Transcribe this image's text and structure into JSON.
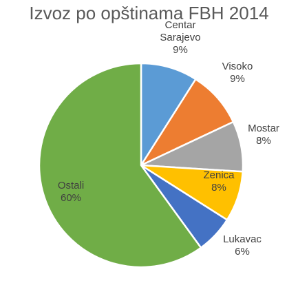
{
  "chart_data": {
    "type": "pie",
    "title": "Izvoz po opštinama FBH 2014",
    "slices": [
      {
        "category": "Centar Sarajevo",
        "value": 9,
        "label_lines": [
          "Centar",
          "Sarajevo"
        ],
        "value_label": "9%",
        "color": "#5B9BD5"
      },
      {
        "category": "Visoko",
        "value": 9,
        "label_lines": [
          "Visoko"
        ],
        "value_label": "9%",
        "color": "#ED7D31"
      },
      {
        "category": "Mostar",
        "value": 8,
        "label_lines": [
          "Mostar"
        ],
        "value_label": "8%",
        "color": "#A5A5A5"
      },
      {
        "category": "Zenica",
        "value": 8,
        "label_lines": [
          "Zenica"
        ],
        "value_label": "8%",
        "color": "#FFC000"
      },
      {
        "category": "Lukavac",
        "value": 6,
        "label_lines": [
          "Lukavac"
        ],
        "value_label": "6%",
        "color": "#4472C4"
      },
      {
        "category": "Ostali",
        "value": 60,
        "label_lines": [
          "Ostali"
        ],
        "value_label": "60%",
        "color": "#70AD47"
      }
    ],
    "start_angle_deg": 0,
    "direction": "clockwise",
    "legend": "none",
    "data_labels": "outside except largest slice inside"
  }
}
